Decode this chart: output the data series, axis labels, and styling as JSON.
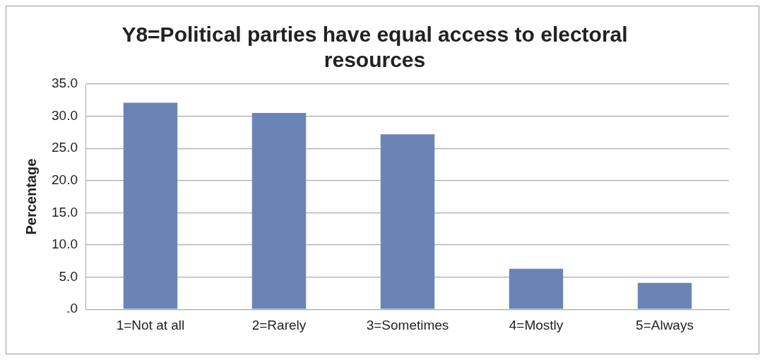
{
  "chart_data": {
    "type": "bar",
    "title": [
      "Y8=Political parties have equal access to electoral",
      "resources"
    ],
    "ylabel": "Percentage",
    "categories": [
      "1=Not at all",
      "2=Rarely",
      "3=Sometimes",
      "4=Mostly",
      "5=Always"
    ],
    "values": [
      32.1,
      30.5,
      27.2,
      6.3,
      4.1
    ],
    "color": "#6c83b5",
    "ylim": [
      0,
      35
    ],
    "yticks": [
      {
        "value": 0,
        "label": ".0"
      },
      {
        "value": 5,
        "label": "5.0"
      },
      {
        "value": 10,
        "label": "10.0"
      },
      {
        "value": 15,
        "label": "15.0"
      },
      {
        "value": 20,
        "label": "20.0"
      },
      {
        "value": 25,
        "label": "25.0"
      },
      {
        "value": 30,
        "label": "30.0"
      },
      {
        "value": 35,
        "label": "35.0"
      }
    ],
    "grid": "y",
    "legend": false
  }
}
